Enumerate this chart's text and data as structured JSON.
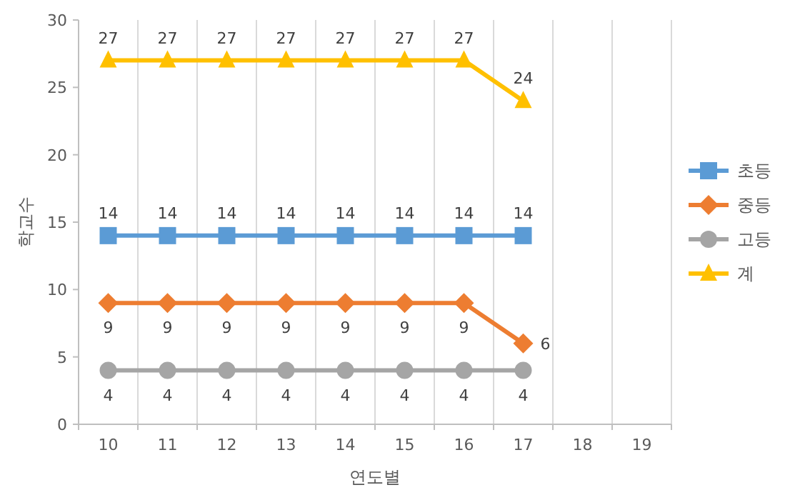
{
  "chart_data": {
    "type": "line",
    "xlabel": "연도별",
    "ylabel": "학교수",
    "categories": [
      "10",
      "11",
      "12",
      "13",
      "14",
      "15",
      "16",
      "17",
      "18",
      "19"
    ],
    "series": [
      {
        "name": "초등",
        "color": "#5b9bd5",
        "marker": "square",
        "values": [
          14,
          14,
          14,
          14,
          14,
          14,
          14,
          14,
          null,
          null
        ]
      },
      {
        "name": "중등",
        "color": "#ed7d31",
        "marker": "diamond",
        "values": [
          9,
          9,
          9,
          9,
          9,
          9,
          9,
          6,
          null,
          null
        ]
      },
      {
        "name": "고등",
        "color": "#a5a5a5",
        "marker": "circle",
        "values": [
          4,
          4,
          4,
          4,
          4,
          4,
          4,
          4,
          null,
          null
        ]
      },
      {
        "name": "계",
        "color": "#ffc000",
        "marker": "triangle",
        "values": [
          27,
          27,
          27,
          27,
          27,
          27,
          27,
          24,
          null,
          null
        ]
      }
    ],
    "ylim": [
      0,
      30
    ],
    "yticks": [
      0,
      5,
      10,
      15,
      20,
      25,
      30
    ],
    "grid": "x",
    "legend": "right",
    "data_labels": true
  }
}
